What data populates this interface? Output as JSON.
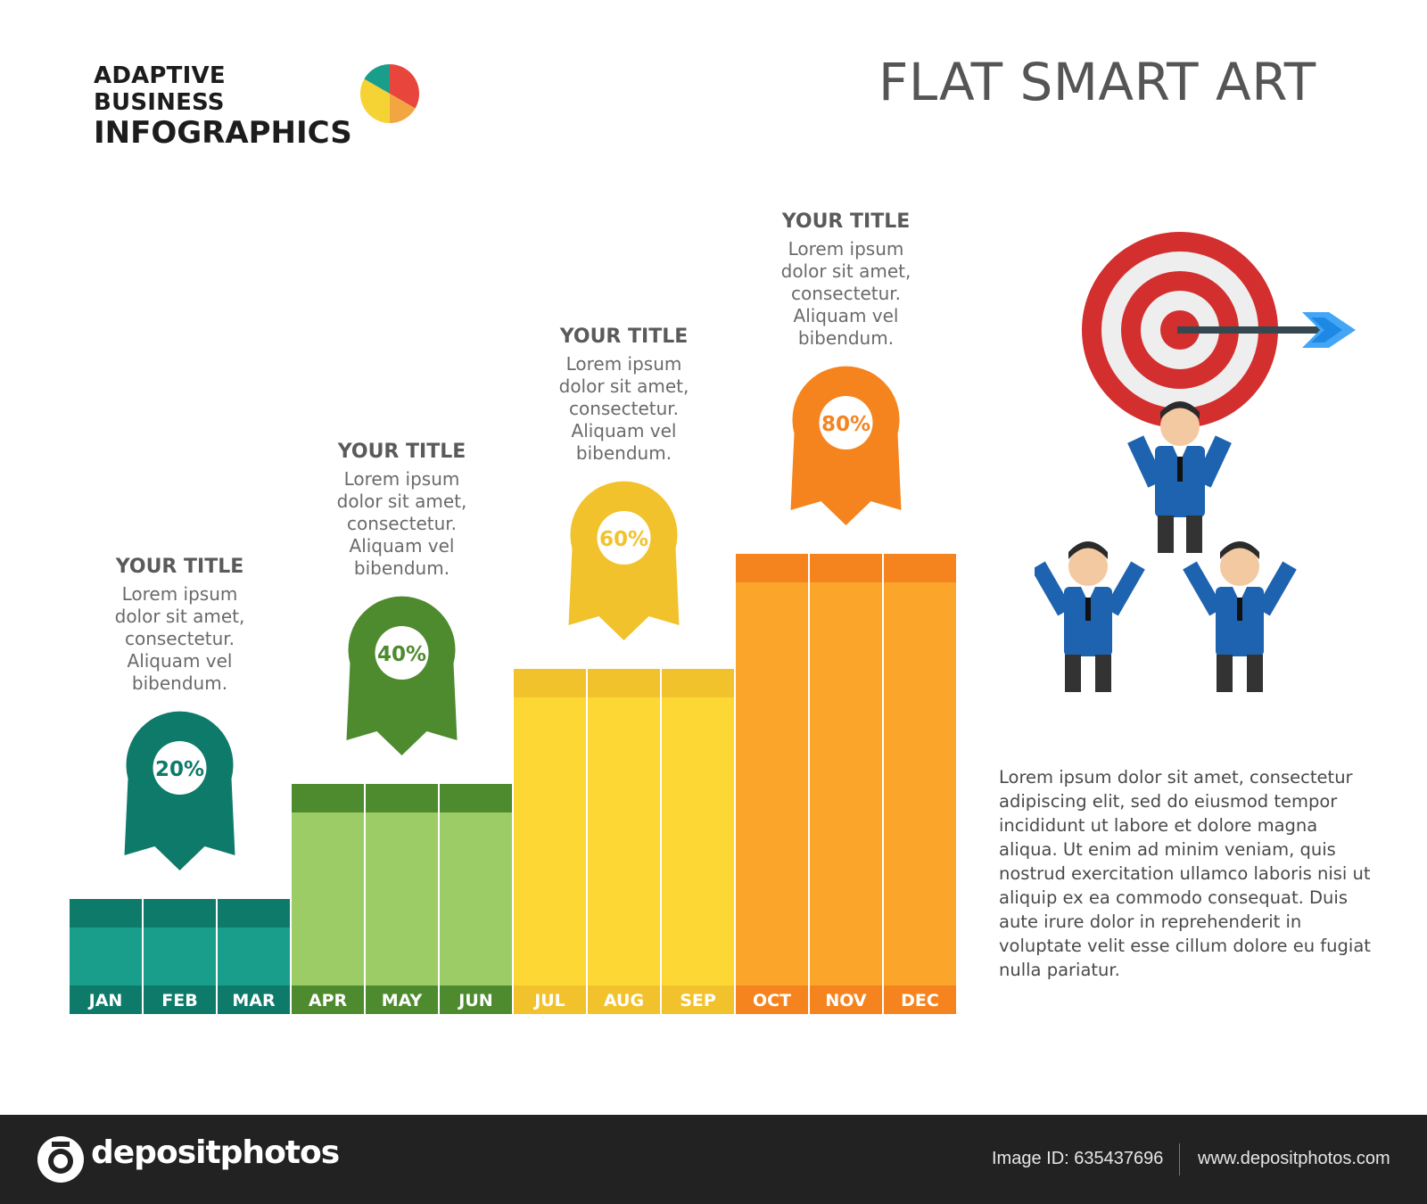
{
  "header": {
    "brand_line1": "ADAPTIVE BUSINESS",
    "brand_line2": "INFOGRAPHICS",
    "title": "FLAT SMART ART"
  },
  "colors": {
    "teal": "#1a9e8c",
    "teal_dark": "#0e7a6a",
    "green": "#9ccc65",
    "green_dark": "#4e8a2e",
    "yellow": "#fdd835",
    "yellow_dark": "#f2c22c",
    "orange": "#fba52b",
    "orange_dark": "#f5841f"
  },
  "chart_data": {
    "type": "bar",
    "categories": [
      "JAN",
      "FEB",
      "MAR",
      "APR",
      "MAY",
      "JUN",
      "JUL",
      "AUG",
      "SEP",
      "OCT",
      "NOV",
      "DEC"
    ],
    "values": [
      20,
      20,
      20,
      40,
      40,
      40,
      60,
      60,
      60,
      80,
      80,
      80
    ],
    "groups": [
      {
        "label": "20%",
        "value": 20,
        "months": [
          "JAN",
          "FEB",
          "MAR"
        ],
        "color": "#1a9e8c",
        "dark": "#0e7a6a",
        "title": "YOUR TITLE",
        "body": [
          "Lorem ipsum",
          "dolor sit amet,",
          "consectetur.",
          "Aliquam vel",
          "bibendum."
        ]
      },
      {
        "label": "40%",
        "value": 40,
        "months": [
          "APR",
          "MAY",
          "JUN"
        ],
        "color": "#9ccc65",
        "dark": "#4e8a2e",
        "title": "YOUR TITLE",
        "body": [
          "Lorem ipsum",
          "dolor sit amet,",
          "consectetur.",
          "Aliquam vel",
          "bibendum."
        ]
      },
      {
        "label": "60%",
        "value": 60,
        "months": [
          "JUL",
          "AUG",
          "SEP"
        ],
        "color": "#fdd835",
        "dark": "#f2c22c",
        "title": "YOUR TITLE",
        "body": [
          "Lorem ipsum",
          "dolor sit amet,",
          "consectetur.",
          "Aliquam vel",
          "bibendum."
        ]
      },
      {
        "label": "80%",
        "value": 80,
        "months": [
          "OCT",
          "NOV",
          "DEC"
        ],
        "color": "#fba52b",
        "dark": "#f5841f",
        "title": "YOUR TITLE",
        "body": [
          "Lorem ipsum",
          "dolor sit amet,",
          "consectetur.",
          "Aliquam vel",
          "bibendum."
        ]
      }
    ]
  },
  "paragraph": "Lorem ipsum dolor sit amet, consectetur adipiscing elit, sed do eiusmod tempor incididunt ut labore et dolore magna aliqua. Ut enim ad minim veniam, quis nostrud exercitation ullamco laboris nisi ut aliquip ex ea commodo consequat. Duis aute irure dolor in reprehenderit in voluptate velit esse cillum dolore eu fugiat nulla pariatur.",
  "footer": {
    "brand": "depositphotos",
    "image_id": "Image ID: 635437696",
    "url": "www.depositphotos.com"
  }
}
